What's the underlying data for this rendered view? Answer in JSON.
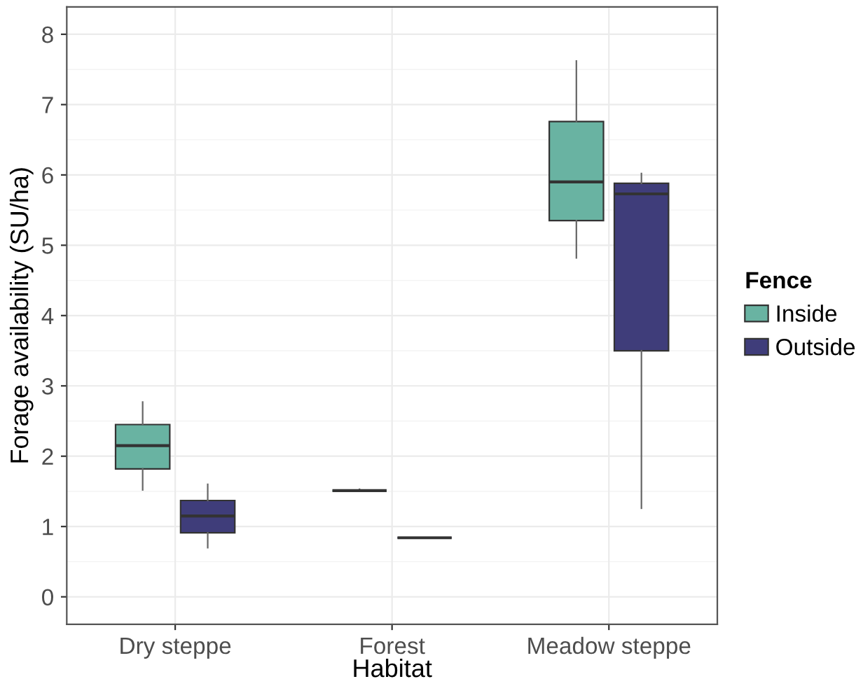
{
  "chart_data": {
    "type": "box",
    "xlabel": "Habitat",
    "ylabel": "Forage availability (SU/ha)",
    "legend_title": "Fence",
    "categories": [
      "Dry steppe",
      "Forest",
      "Meadow steppe"
    ],
    "series": [
      {
        "name": "Inside",
        "color": "#69b3a2",
        "boxes": [
          {
            "low": 1.52,
            "q1": 1.82,
            "median": 2.15,
            "q3": 2.45,
            "high": 2.77
          },
          {
            "low": 1.51,
            "q1": 1.51,
            "median": 1.51,
            "q3": 1.51,
            "high": 1.53
          },
          {
            "low": 4.82,
            "q1": 5.35,
            "median": 5.9,
            "q3": 6.76,
            "high": 7.62
          }
        ]
      },
      {
        "name": "Outside",
        "color": "#3f3d7a",
        "boxes": [
          {
            "low": 0.7,
            "q1": 0.91,
            "median": 1.15,
            "q3": 1.37,
            "high": 1.6
          },
          {
            "low": 0.84,
            "q1": 0.84,
            "median": 0.84,
            "q3": 0.84,
            "high": 0.84
          },
          {
            "low": 1.26,
            "q1": 3.5,
            "median": 5.73,
            "q3": 5.88,
            "high": 6.02
          }
        ]
      }
    ],
    "ylim": [
      -0.39,
      8.39
    ],
    "yticks": [
      0,
      1,
      2,
      3,
      4,
      5,
      6,
      7,
      8
    ],
    "grid": true,
    "legend": "right"
  }
}
